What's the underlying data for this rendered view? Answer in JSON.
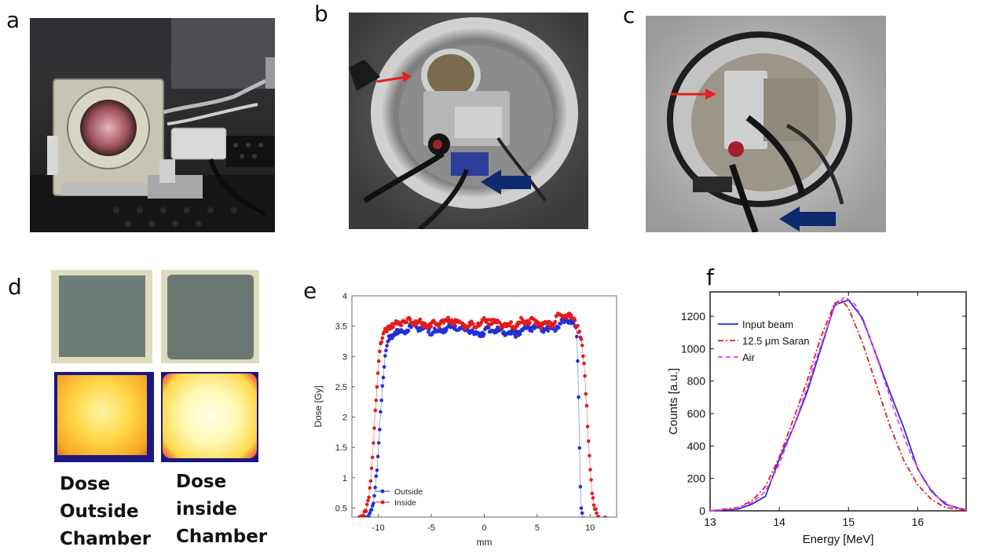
{
  "panels": {
    "a": {
      "label": "a"
    },
    "b": {
      "label": "b"
    },
    "c": {
      "label": "c"
    },
    "d": {
      "label": "d",
      "left_caption": [
        "Dose",
        "Outside",
        "Chamber"
      ],
      "right_caption": [
        "Dose",
        "inside",
        "Chamber"
      ]
    },
    "e": {
      "label": "e"
    },
    "f": {
      "label": "f"
    }
  },
  "colors": {
    "blue_series": "#1f2fd9",
    "red_series": "#e31b1b",
    "magenta_series": "#ff33ee",
    "arrow_red": "#e51e1e",
    "arrow_navy": "#0d2a6e"
  },
  "chart_data": [
    {
      "type": "scatter",
      "xlabel": "mm",
      "ylabel": "Dose [Gy]",
      "xlim": [
        -12.5,
        12.5
      ],
      "ylim": [
        0.35,
        4.0
      ],
      "xticks": [
        "-10",
        "-5",
        "0",
        "5",
        "10"
      ],
      "yticks": [
        "0.5",
        "1",
        "1.5",
        "2",
        "2.5",
        "3",
        "3.5",
        "4"
      ],
      "legend_position": "bottom-left",
      "series": [
        {
          "name": "Outside",
          "color": "#1f2fd9",
          "plateau": 3.45,
          "edges": [
            -10.4,
            9.1
          ]
        },
        {
          "name": "Inside",
          "color": "#e31b1b",
          "plateau": 3.55,
          "edges": [
            -10.9,
            9.9
          ]
        }
      ]
    },
    {
      "type": "line",
      "xlabel": "Energy [MeV]",
      "ylabel": "Counts [a.u.]",
      "xlim": [
        13,
        16.7
      ],
      "ylim": [
        0,
        1350
      ],
      "xticks": [
        "13",
        "14",
        "15",
        "16"
      ],
      "yticks": [
        "0",
        "200",
        "400",
        "600",
        "800",
        "1000",
        "1200"
      ],
      "legend_position": "top-left",
      "series": [
        {
          "name": "Input beam",
          "color": "#1f2fd9",
          "style": "solid",
          "x": [
            13.0,
            13.4,
            13.6,
            13.8,
            14.0,
            14.2,
            14.4,
            14.6,
            14.8,
            15.0,
            15.2,
            15.4,
            15.6,
            15.8,
            16.0,
            16.2,
            16.4,
            16.7
          ],
          "y": [
            0,
            10,
            40,
            90,
            320,
            510,
            730,
            1000,
            1270,
            1300,
            1190,
            960,
            730,
            510,
            260,
            120,
            40,
            5
          ]
        },
        {
          "name": "12.5 μm Saran",
          "color": "#e31b1b",
          "style": "dashdot",
          "x": [
            13.0,
            13.4,
            13.6,
            13.8,
            14.0,
            14.2,
            14.4,
            14.6,
            14.8,
            14.9,
            15.0,
            15.2,
            15.4,
            15.6,
            15.8,
            16.0,
            16.2,
            16.4,
            16.7
          ],
          "y": [
            0,
            20,
            60,
            150,
            330,
            560,
            800,
            1070,
            1280,
            1300,
            1250,
            1040,
            780,
            520,
            310,
            160,
            70,
            20,
            5
          ]
        },
        {
          "name": "Air",
          "color": "#ff33ee",
          "style": "dashed",
          "x": [
            13.0,
            13.4,
            13.6,
            13.8,
            14.0,
            14.2,
            14.4,
            14.6,
            14.8,
            14.95,
            15.1,
            15.3,
            15.5,
            15.7,
            15.9,
            16.1,
            16.3,
            16.5,
            16.7
          ],
          "y": [
            0,
            15,
            50,
            120,
            290,
            510,
            760,
            1020,
            1260,
            1320,
            1270,
            1080,
            830,
            570,
            350,
            180,
            80,
            25,
            5
          ]
        }
      ]
    }
  ]
}
